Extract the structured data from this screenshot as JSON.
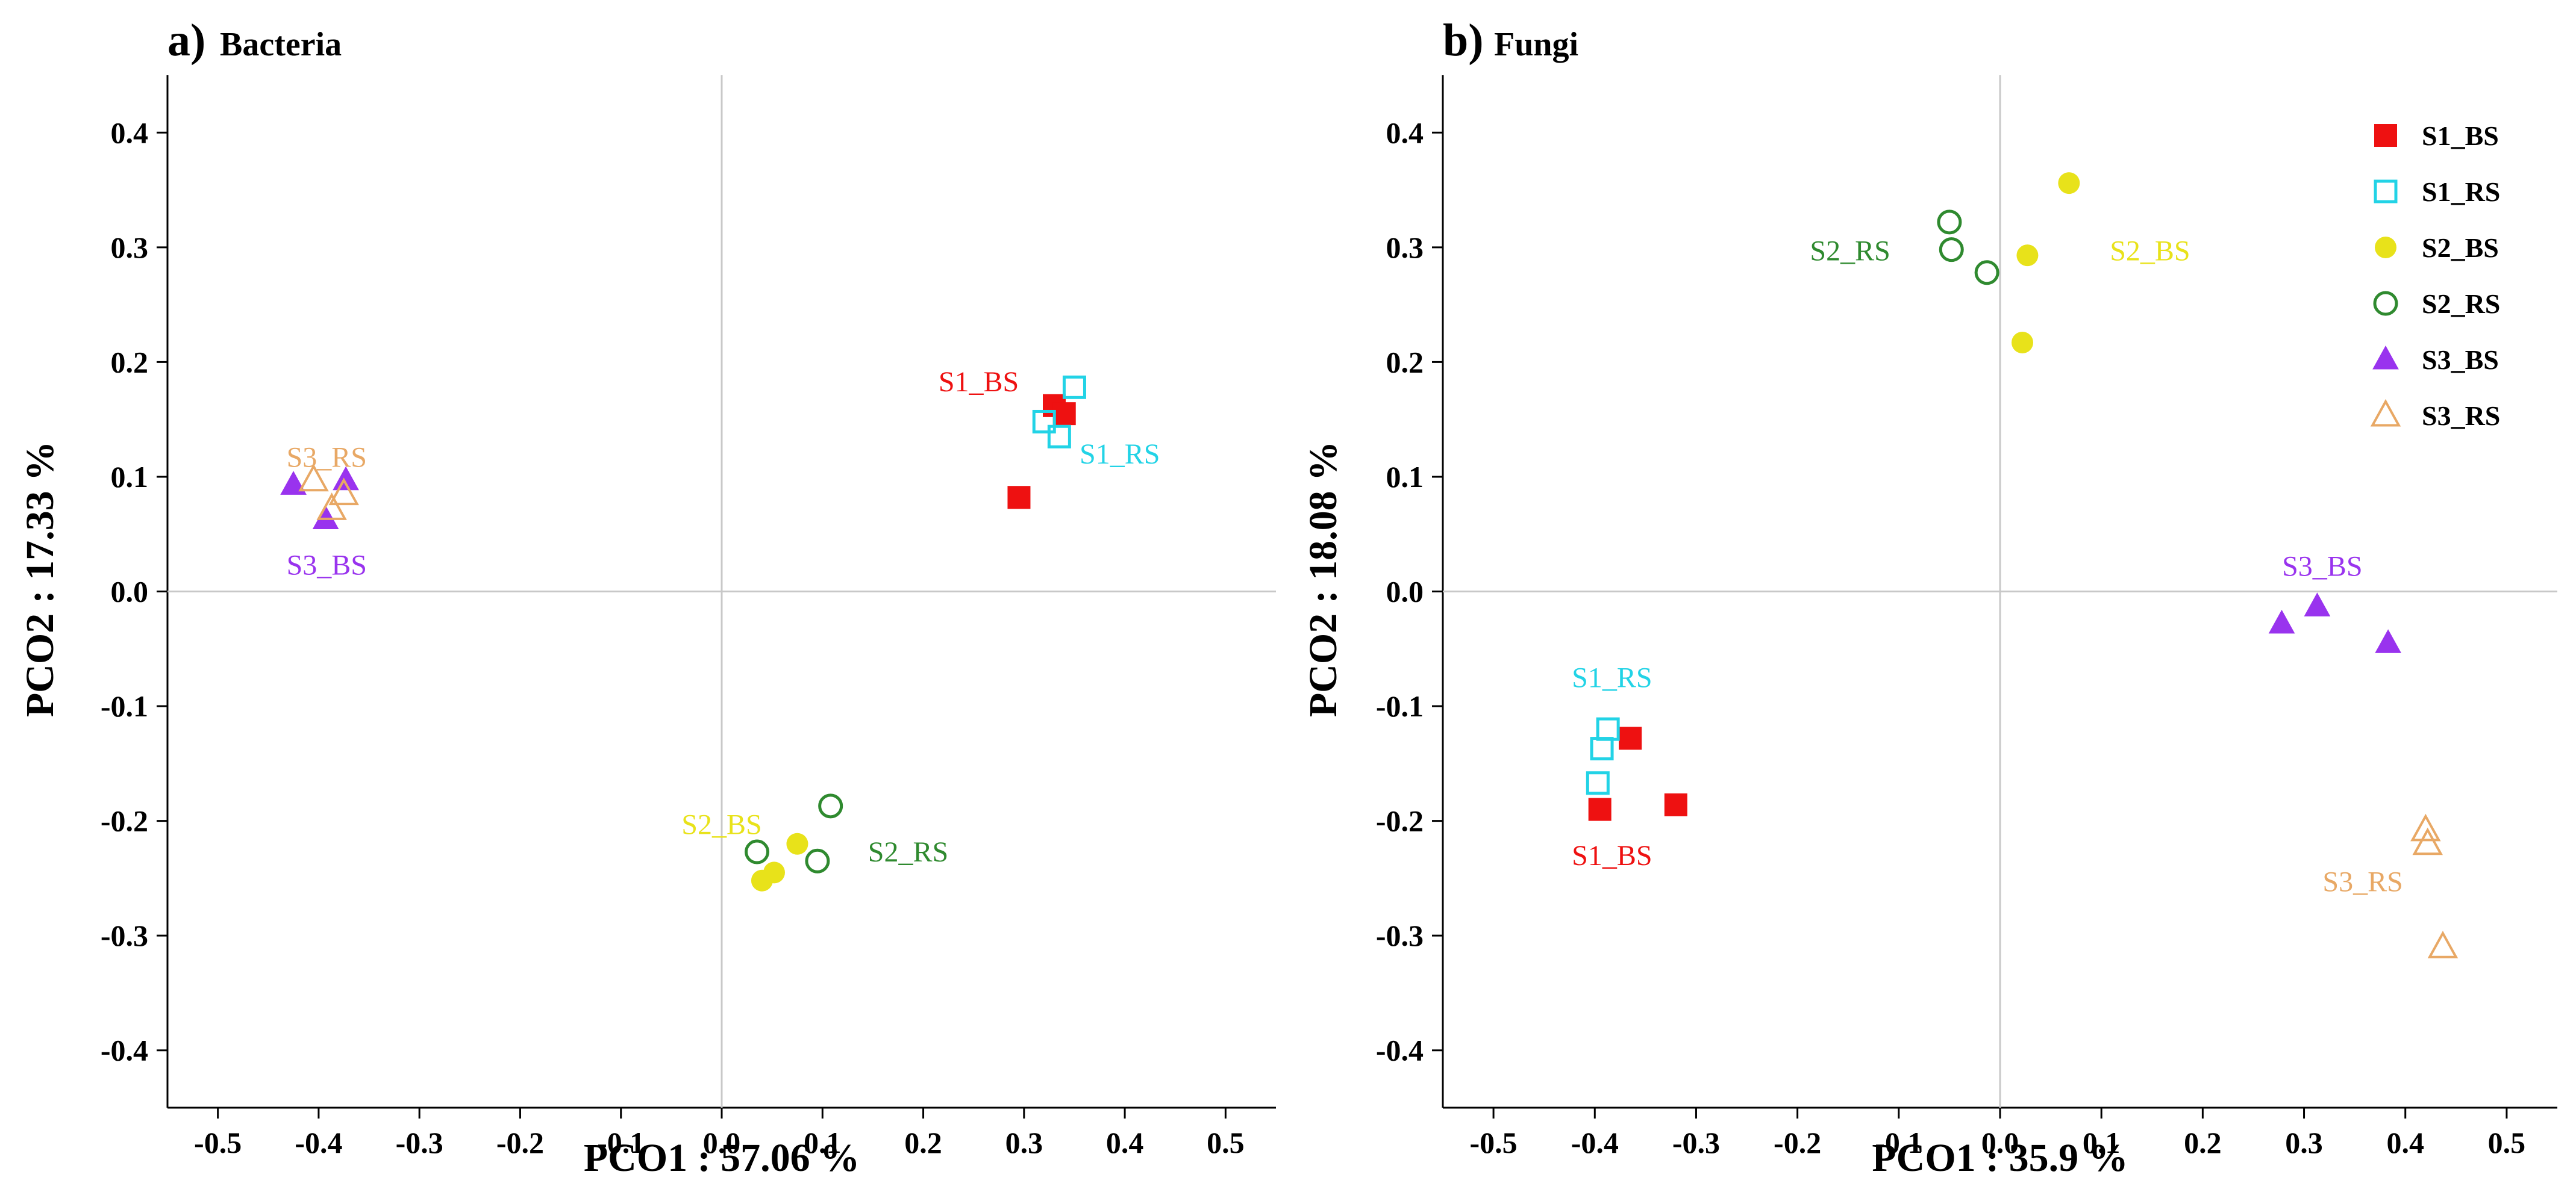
{
  "colors": {
    "S1_BS": "#ee1111",
    "S1_RS": "#22d3e6",
    "S2_BS": "#e8e21a",
    "S2_RS": "#2f8a2f",
    "S3_BS": "#9933ee",
    "S3_RS": "#e8a865"
  },
  "chart_data": [
    {
      "type": "scatter",
      "panel": "a)",
      "title": "Bacteria",
      "xlabel": "PCO1 : 57.06 %",
      "ylabel": "PCO2 : 17.33 %",
      "xlim": [
        -0.55,
        0.55
      ],
      "ylim": [
        -0.45,
        0.45
      ],
      "xticks": [
        "-0.5",
        "-0.4",
        "-0.3",
        "-0.2",
        "-0.1",
        "0.0",
        "0.1",
        "0.2",
        "0.3",
        "0.4",
        "0.5"
      ],
      "yticks": [
        "0.4",
        "0.3",
        "0.2",
        "0.1",
        "0.0",
        "-0.1",
        "-0.2",
        "-0.3",
        "-0.4"
      ],
      "legend": false,
      "series": [
        {
          "name": "S1_BS",
          "marker": "square-filled",
          "x": [
            0.295,
            0.33,
            0.34
          ],
          "y": [
            0.082,
            0.162,
            0.155
          ]
        },
        {
          "name": "S1_RS",
          "marker": "square-open",
          "x": [
            0.32,
            0.335,
            0.35
          ],
          "y": [
            0.148,
            0.135,
            0.178
          ]
        },
        {
          "name": "S2_BS",
          "marker": "circle-filled",
          "x": [
            0.04,
            0.052,
            0.075
          ],
          "y": [
            -0.252,
            -0.245,
            -0.22
          ]
        },
        {
          "name": "S2_RS",
          "marker": "circle-open",
          "x": [
            0.035,
            0.095,
            0.108
          ],
          "y": [
            -0.227,
            -0.235,
            -0.187
          ]
        },
        {
          "name": "S3_BS",
          "marker": "triangle-filled",
          "x": [
            -0.425,
            -0.393,
            -0.373
          ],
          "y": [
            0.093,
            0.063,
            0.097
          ]
        },
        {
          "name": "S3_RS",
          "marker": "triangle-open",
          "x": [
            -0.405,
            -0.387,
            -0.375
          ],
          "y": [
            0.097,
            0.072,
            0.085
          ]
        }
      ],
      "annotations": [
        {
          "text": "S1_BS",
          "series": "S1_BS",
          "x": 0.255,
          "y": 0.183
        },
        {
          "text": "S1_RS",
          "series": "S1_RS",
          "x": 0.395,
          "y": 0.12
        },
        {
          "text": "S2_BS",
          "series": "S2_BS",
          "x": 0.0,
          "y": -0.203
        },
        {
          "text": "S2_RS",
          "series": "S2_RS",
          "x": 0.185,
          "y": -0.227
        },
        {
          "text": "S3_RS",
          "series": "S3_RS",
          "x": -0.392,
          "y": 0.117
        },
        {
          "text": "S3_BS",
          "series": "S3_BS",
          "x": -0.392,
          "y": 0.023
        }
      ]
    },
    {
      "type": "scatter",
      "panel": "b)",
      "title": "Fungi",
      "xlabel": "PCO1 : 35.9 %",
      "ylabel": "PCO2 : 18.08 %",
      "xlim": [
        -0.55,
        0.55
      ],
      "ylim": [
        -0.45,
        0.45
      ],
      "xticks": [
        "-0.5",
        "-0.4",
        "-0.3",
        "-0.2",
        "-0.1",
        "0.0",
        "0.1",
        "0.2",
        "0.3",
        "0.4",
        "0.5"
      ],
      "yticks": [
        "0.4",
        "0.3",
        "0.2",
        "0.1",
        "0.0",
        "-0.1",
        "-0.2",
        "-0.3",
        "-0.4"
      ],
      "legend": true,
      "legend_position": "top-right",
      "series": [
        {
          "name": "S1_BS",
          "marker": "square-filled",
          "x": [
            -0.395,
            -0.365,
            -0.32
          ],
          "y": [
            -0.19,
            -0.128,
            -0.186
          ]
        },
        {
          "name": "S1_RS",
          "marker": "square-open",
          "x": [
            -0.397,
            -0.393,
            -0.387
          ],
          "y": [
            -0.167,
            -0.137,
            -0.12
          ]
        },
        {
          "name": "S2_BS",
          "marker": "circle-filled",
          "x": [
            0.022,
            0.027,
            0.068
          ],
          "y": [
            0.217,
            0.293,
            0.356
          ]
        },
        {
          "name": "S2_RS",
          "marker": "circle-open",
          "x": [
            -0.05,
            -0.048,
            -0.013
          ],
          "y": [
            0.322,
            0.298,
            0.278
          ]
        },
        {
          "name": "S3_BS",
          "marker": "triangle-filled",
          "x": [
            0.278,
            0.313,
            0.383
          ],
          "y": [
            -0.028,
            -0.013,
            -0.045
          ]
        },
        {
          "name": "S3_RS",
          "marker": "triangle-open",
          "x": [
            0.42,
            0.422,
            0.437
          ],
          "y": [
            -0.208,
            -0.22,
            -0.31
          ]
        }
      ],
      "annotations": [
        {
          "text": "S2_RS",
          "series": "S2_RS",
          "x": -0.148,
          "y": 0.297
        },
        {
          "text": "S2_BS",
          "series": "S2_BS",
          "x": 0.148,
          "y": 0.297
        },
        {
          "text": "S3_BS",
          "series": "S3_BS",
          "x": 0.318,
          "y": 0.022
        },
        {
          "text": "S1_RS",
          "series": "S1_RS",
          "x": -0.383,
          "y": -0.075
        },
        {
          "text": "S1_BS",
          "series": "S1_BS",
          "x": -0.383,
          "y": -0.23
        },
        {
          "text": "S3_RS",
          "series": "S3_RS",
          "x": 0.358,
          "y": -0.253
        }
      ]
    }
  ]
}
